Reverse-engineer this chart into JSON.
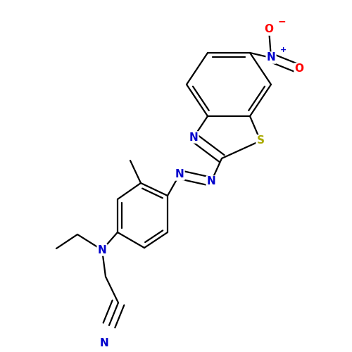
{
  "bg_color": "#ffffff",
  "bond_color": "#000000",
  "bond_width": 1.6,
  "dbo": 0.012,
  "atom_colors": {
    "N": "#0000cc",
    "S": "#aaaa00",
    "O": "#ff0000",
    "C": "#000000"
  },
  "fs": 11,
  "fsc": 8
}
